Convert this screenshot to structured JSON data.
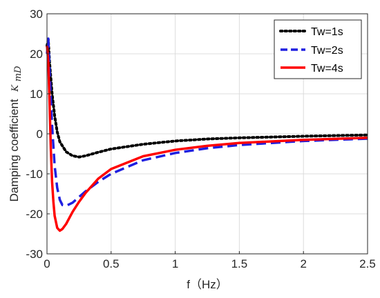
{
  "chart_data": {
    "type": "line",
    "title": "",
    "xlabel": "f（Hz）",
    "ylabel": "Damping coefficient",
    "ylabel_symbol": "K",
    "ylabel_subscript": "mD",
    "xlim": [
      0,
      2.5
    ],
    "ylim": [
      -30,
      30
    ],
    "x_ticks": [
      "0",
      "0.5",
      "1",
      "1.5",
      "2",
      "2.5"
    ],
    "y_ticks": [
      "-30",
      "-20",
      "-10",
      "0",
      "10",
      "20",
      "30"
    ],
    "grid": true,
    "legend_position": "top-right",
    "series": [
      {
        "name": "Tw=1s",
        "color": "#000000",
        "style": "dotted",
        "x": [
          0,
          0.01,
          0.02,
          0.04,
          0.06,
          0.08,
          0.1,
          0.15,
          0.2,
          0.25,
          0.3,
          0.4,
          0.5,
          0.75,
          1.0,
          1.25,
          1.5,
          2.0,
          2.5
        ],
        "values": [
          22,
          23.5,
          18,
          10,
          4.5,
          0.5,
          -2,
          -4.5,
          -5.5,
          -5.8,
          -5.5,
          -4.6,
          -3.8,
          -2.6,
          -1.8,
          -1.3,
          -1.0,
          -0.6,
          -0.3
        ]
      },
      {
        "name": "Tw=2s",
        "color": "#1f1fe0",
        "style": "dashed",
        "x": [
          0,
          0.01,
          0.02,
          0.04,
          0.06,
          0.08,
          0.1,
          0.12,
          0.15,
          0.2,
          0.25,
          0.3,
          0.4,
          0.5,
          0.75,
          1.0,
          1.25,
          1.5,
          2.0,
          2.5
        ],
        "values": [
          20,
          23.8,
          16,
          2,
          -8,
          -13.5,
          -16.5,
          -17.8,
          -18,
          -17.2,
          -15.8,
          -14.4,
          -12,
          -10,
          -6.6,
          -4.8,
          -3.6,
          -2.8,
          -1.8,
          -1.2
        ]
      },
      {
        "name": "Tw=4s",
        "color": "#ff0000",
        "style": "solid",
        "x": [
          0,
          0.01,
          0.02,
          0.03,
          0.04,
          0.05,
          0.06,
          0.08,
          0.1,
          0.12,
          0.15,
          0.2,
          0.25,
          0.3,
          0.4,
          0.5,
          0.75,
          1.0,
          1.25,
          1.5,
          2.0,
          2.5
        ],
        "values": [
          22,
          18,
          8,
          -4,
          -12,
          -17,
          -20.5,
          -23.5,
          -24.2,
          -23.8,
          -22.5,
          -19.5,
          -17,
          -14.8,
          -11.2,
          -8.8,
          -5.6,
          -4,
          -3,
          -2.3,
          -1.5,
          -1
        ]
      }
    ]
  }
}
